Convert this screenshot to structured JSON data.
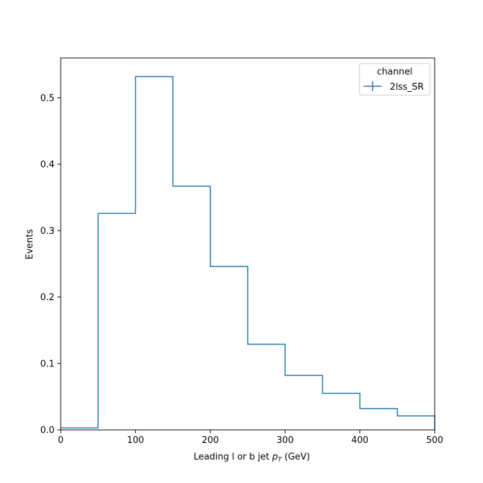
{
  "chart_data": {
    "type": "histogram",
    "xlabel": "Leading l or b jet",
    "xlabel_math": "p",
    "xlabel_math_sub": "T",
    "xlabel_unit": "(GeV)",
    "ylabel": "Events",
    "xlim": [
      0,
      500
    ],
    "ylim": [
      0,
      0.56
    ],
    "xticks": [
      "0",
      "100",
      "200",
      "300",
      "400",
      "500"
    ],
    "yticks": [
      "0.0",
      "0.1",
      "0.2",
      "0.3",
      "0.4",
      "0.5"
    ],
    "grid": false,
    "legend": {
      "title": "channel",
      "placement": "top-right",
      "entries": [
        "2lss_SR"
      ]
    },
    "bin_edges": [
      0,
      50,
      100,
      150,
      200,
      250,
      300,
      350,
      400,
      450,
      500
    ],
    "series": [
      {
        "name": "2lss_SR",
        "color": "#1f77b4",
        "values": [
          0.003,
          0.326,
          0.532,
          0.367,
          0.246,
          0.129,
          0.082,
          0.055,
          0.032,
          0.021
        ]
      }
    ]
  }
}
